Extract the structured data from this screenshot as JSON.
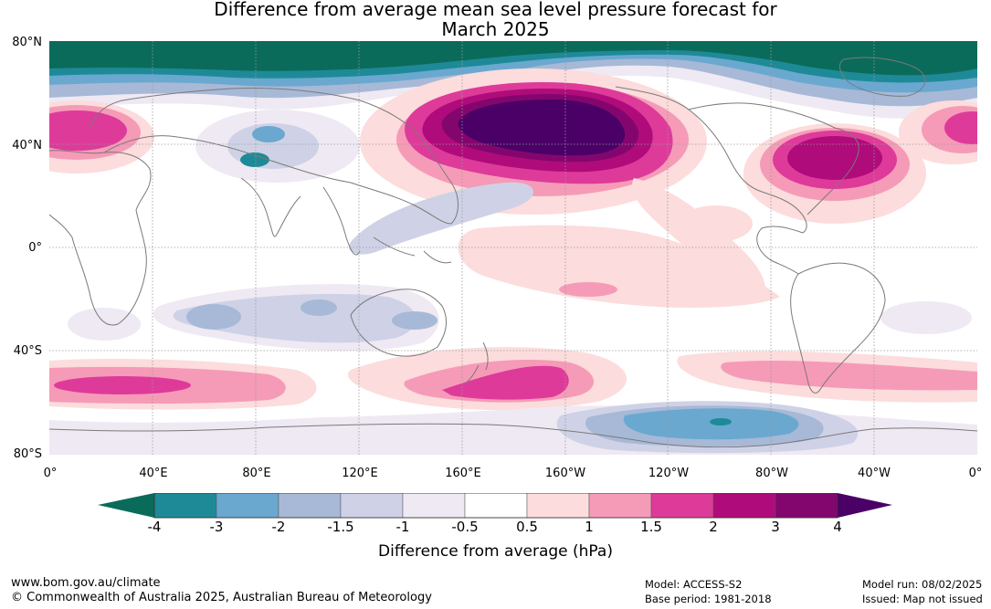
{
  "title": {
    "line1": "Difference from average mean sea level pressure forecast for",
    "line2": "March 2025"
  },
  "map": {
    "lat_labels": [
      "80°N",
      "40°N",
      "0°",
      "40°S",
      "80°S"
    ],
    "lon_labels": [
      "0°",
      "40°E",
      "80°E",
      "120°E",
      "160°E",
      "160°W",
      "120°W",
      "80°W",
      "40°W",
      "0°"
    ]
  },
  "colorbar": {
    "label": "Difference from average (hPa)",
    "ticks": [
      "-4",
      "-3",
      "-2",
      "-1.5",
      "-1",
      "-0.5",
      "0.5",
      "1",
      "1.5",
      "2",
      "3",
      "4"
    ],
    "colors": {
      "below_min": "#0b6b5a",
      "c1": "#1e8a98",
      "c2": "#6aa8d0",
      "c3": "#a7b9d6",
      "c4": "#cfd2e6",
      "c5": "#efe9f3",
      "c6": "#ffffff",
      "c7": "#fcdcdc",
      "c8": "#f59bb7",
      "c9": "#de3a9a",
      "c10": "#b00b7a",
      "c11": "#83066e",
      "above_max": "#4a0066"
    }
  },
  "footer": {
    "left_line1": "www.bom.gov.au/climate",
    "left_line2": "© Commonwealth of Australia 2025, Australian Bureau of Meteorology",
    "mid_line1": "Model: ACCESS-S2",
    "mid_line2": "Base period: 1981-2018",
    "right_line1": "Model run: 08/02/2025",
    "right_line2": "Issued: Map not issued"
  }
}
